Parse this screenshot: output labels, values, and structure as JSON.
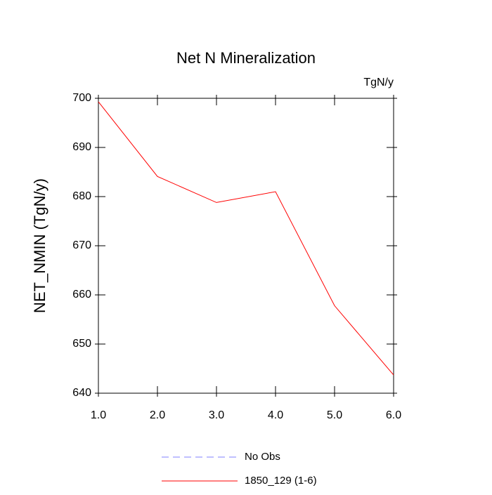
{
  "chart_data": {
    "type": "line",
    "title": "Net N Mineralization",
    "units_label": "TgN/y",
    "y_label": "NET_NMIN  (TgN/y)",
    "x": [
      1,
      2,
      3,
      4,
      5,
      6
    ],
    "series": [
      {
        "name": "No Obs",
        "color": "#8080ff",
        "dashed": true,
        "values": [
          null,
          null,
          null,
          null,
          null,
          null
        ]
      },
      {
        "name": "1850_129 (1-6)",
        "color": "#ff0000",
        "dashed": false,
        "values": [
          699.3,
          684.1,
          678.8,
          681.0,
          657.8,
          643.7
        ]
      }
    ],
    "xlim": [
      1,
      6
    ],
    "xticks": [
      {
        "value": 1,
        "label": "1.0"
      },
      {
        "value": 2,
        "label": "2.0"
      },
      {
        "value": 3,
        "label": "3.0"
      },
      {
        "value": 4,
        "label": "4.0"
      },
      {
        "value": 5,
        "label": "5.0"
      },
      {
        "value": 6,
        "label": "6.0"
      }
    ],
    "ylim": [
      640,
      700
    ],
    "yticks": [
      640,
      650,
      660,
      670,
      680,
      690,
      700
    ]
  }
}
